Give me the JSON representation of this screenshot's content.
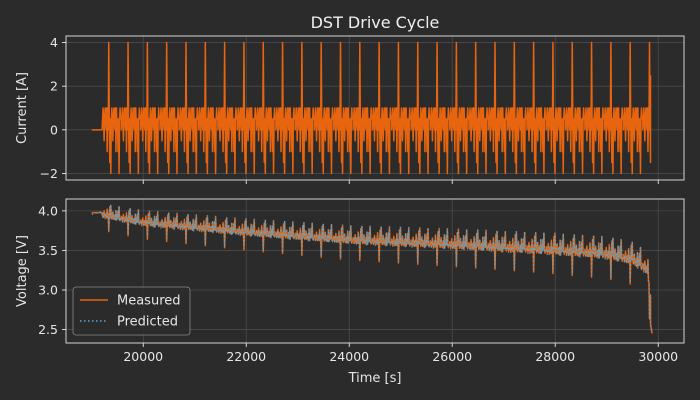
{
  "chart_data": {
    "type": "line",
    "title": "DST Drive Cycle",
    "xlabel": "Time [s]",
    "xlim": [
      18500,
      30500
    ],
    "x_ticks": [
      20000,
      22000,
      24000,
      26000,
      28000,
      30000
    ],
    "x_tick_labels": [
      "20000",
      "22000",
      "24000",
      "26000",
      "28000",
      "30000"
    ],
    "grid": true,
    "colors": {
      "background": "#2b2b2b",
      "axes_face": "#2b2b2b",
      "grid": "#4a4a4a",
      "spine": "#e6e6e6",
      "measured": "#e8650f",
      "predicted": "#56a7d6"
    },
    "cycle": {
      "start": 19000,
      "rest_until": 19200,
      "end": 29850,
      "period": 375,
      "current_profile": [
        [
          0,
          0
        ],
        [
          10,
          0.5
        ],
        [
          20,
          1.0
        ],
        [
          30,
          0.5
        ],
        [
          40,
          -0.5
        ],
        [
          50,
          0.5
        ],
        [
          60,
          1.0
        ],
        [
          70,
          0.5
        ],
        [
          80,
          0
        ],
        [
          90,
          1.0
        ],
        [
          100,
          -1.0
        ],
        [
          110,
          1.0
        ],
        [
          120,
          0
        ],
        [
          130,
          4.0
        ],
        [
          140,
          0.5
        ],
        [
          150,
          -1.5
        ],
        [
          160,
          0.5
        ],
        [
          170,
          -2.0
        ],
        [
          180,
          0.5
        ],
        [
          190,
          1.0
        ],
        [
          200,
          0.5
        ],
        [
          210,
          -0.5
        ],
        [
          220,
          0.5
        ],
        [
          230,
          1.0
        ],
        [
          240,
          0.5
        ],
        [
          250,
          0
        ],
        [
          260,
          1.0
        ],
        [
          270,
          -1.0
        ],
        [
          280,
          1.0
        ],
        [
          290,
          0
        ],
        [
          300,
          0.5
        ],
        [
          310,
          -1.0
        ],
        [
          320,
          0.5
        ],
        [
          330,
          -2.0
        ],
        [
          340,
          0.5
        ],
        [
          350,
          1.0
        ],
        [
          360,
          0.5
        ],
        [
          375,
          0.5
        ]
      ]
    },
    "voltage_envelope": {
      "time": [
        19000,
        19200,
        20000,
        22000,
        24000,
        26000,
        28000,
        29000,
        29500,
        29800,
        29880
      ],
      "value": [
        3.95,
        3.95,
        3.85,
        3.73,
        3.63,
        3.57,
        3.5,
        3.45,
        3.38,
        3.25,
        2.45
      ]
    },
    "panels": [
      {
        "name": "current",
        "ylabel": "Current [A]",
        "ylim": [
          -2.3,
          4.3
        ],
        "y_ticks": [
          -2,
          0,
          2,
          4
        ],
        "y_tick_labels": [
          "−2",
          "0",
          "2",
          "4"
        ],
        "series": [
          {
            "key": "measured",
            "style": "solid"
          }
        ]
      },
      {
        "name": "voltage",
        "ylabel": "Voltage [V]",
        "ylim": [
          2.33,
          4.15
        ],
        "y_ticks": [
          2.5,
          3.0,
          3.5,
          4.0
        ],
        "y_tick_labels": [
          "2.5",
          "3.0",
          "3.5",
          "4.0"
        ],
        "series": [
          {
            "key": "measured",
            "name": "Measured",
            "style": "solid"
          },
          {
            "key": "predicted",
            "name": "Predicted",
            "style": "dotted"
          }
        ],
        "legend": "lower-left"
      }
    ]
  }
}
